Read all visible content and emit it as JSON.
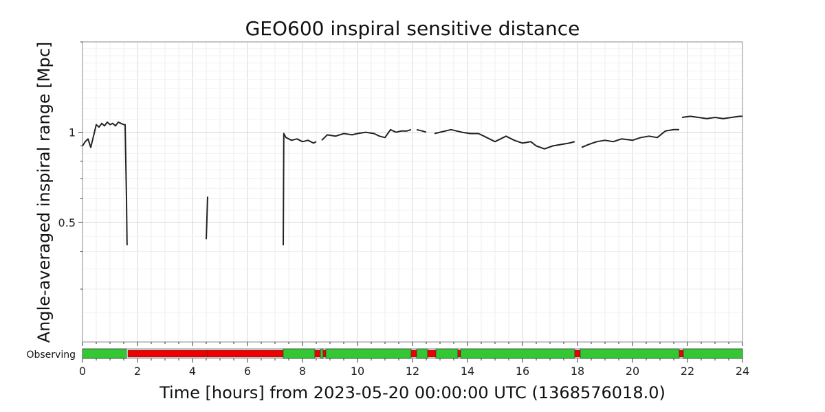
{
  "chart_data": {
    "type": "line",
    "title": "GEO600 inspiral sensitive distance",
    "xlabel": "Time [hours] from 2023-05-20 00:00:00 UTC (1368576018.0)",
    "ylabel": "Angle-averaged inspiral range [Mpc]",
    "x_ticks": [
      0,
      2,
      4,
      6,
      8,
      10,
      12,
      14,
      16,
      18,
      20,
      22,
      24
    ],
    "x_tick_labels": [
      "0",
      "2",
      "4",
      "6",
      "8",
      "10",
      "12",
      "14",
      "16",
      "18",
      "20",
      "22",
      "24"
    ],
    "y_tick_labels": [
      "0.5",
      "1"
    ],
    "y_scale": "log",
    "xlim": [
      0,
      24
    ],
    "ylim": [
      0.2,
      2.0
    ],
    "grid": true,
    "series": [
      {
        "color": "#222222",
        "segments": [
          [
            [
              0.0,
              0.9
            ],
            [
              0.1,
              0.93
            ],
            [
              0.2,
              0.95
            ],
            [
              0.3,
              0.89
            ],
            [
              0.4,
              0.97
            ],
            [
              0.5,
              1.06
            ],
            [
              0.6,
              1.04
            ],
            [
              0.7,
              1.07
            ],
            [
              0.8,
              1.05
            ],
            [
              0.9,
              1.08
            ],
            [
              1.0,
              1.06
            ],
            [
              1.1,
              1.07
            ],
            [
              1.2,
              1.05
            ],
            [
              1.3,
              1.08
            ],
            [
              1.4,
              1.07
            ],
            [
              1.5,
              1.06
            ],
            [
              1.55,
              1.06
            ],
            [
              1.6,
              0.6
            ],
            [
              1.62,
              0.42
            ]
          ],
          [
            [
              4.5,
              0.44
            ],
            [
              4.55,
              0.61
            ]
          ],
          [
            [
              7.3,
              0.42
            ],
            [
              7.32,
              0.99
            ],
            [
              7.4,
              0.96
            ],
            [
              7.6,
              0.94
            ],
            [
              7.8,
              0.95
            ],
            [
              8.0,
              0.93
            ],
            [
              8.2,
              0.94
            ],
            [
              8.4,
              0.92
            ],
            [
              8.5,
              0.93
            ]
          ],
          [
            [
              8.7,
              0.94
            ],
            [
              8.9,
              0.98
            ],
            [
              9.2,
              0.97
            ],
            [
              9.5,
              0.99
            ],
            [
              9.8,
              0.98
            ],
            [
              10.0,
              0.99
            ],
            [
              10.3,
              1.0
            ],
            [
              10.6,
              0.99
            ],
            [
              10.8,
              0.97
            ],
            [
              11.0,
              0.96
            ],
            [
              11.2,
              1.02
            ],
            [
              11.4,
              1.0
            ],
            [
              11.6,
              1.01
            ],
            [
              11.8,
              1.01
            ],
            [
              11.95,
              1.02
            ]
          ],
          [
            [
              12.15,
              1.02
            ],
            [
              12.35,
              1.01
            ],
            [
              12.5,
              1.0
            ]
          ],
          [
            [
              12.8,
              0.99
            ],
            [
              13.0,
              1.0
            ],
            [
              13.2,
              1.01
            ],
            [
              13.4,
              1.02
            ],
            [
              13.6,
              1.01
            ],
            [
              13.8,
              1.0
            ],
            [
              14.1,
              0.99
            ],
            [
              14.4,
              0.99
            ],
            [
              14.6,
              0.97
            ],
            [
              14.8,
              0.95
            ],
            [
              15.0,
              0.93
            ],
            [
              15.2,
              0.95
            ],
            [
              15.4,
              0.97
            ],
            [
              15.7,
              0.94
            ],
            [
              16.0,
              0.92
            ],
            [
              16.3,
              0.93
            ],
            [
              16.5,
              0.9
            ],
            [
              16.8,
              0.88
            ],
            [
              17.1,
              0.9
            ],
            [
              17.4,
              0.91
            ],
            [
              17.7,
              0.92
            ],
            [
              17.9,
              0.93
            ]
          ],
          [
            [
              18.15,
              0.89
            ],
            [
              18.4,
              0.91
            ],
            [
              18.7,
              0.93
            ],
            [
              19.0,
              0.94
            ],
            [
              19.3,
              0.93
            ],
            [
              19.6,
              0.95
            ],
            [
              20.0,
              0.94
            ],
            [
              20.3,
              0.96
            ],
            [
              20.6,
              0.97
            ],
            [
              20.9,
              0.96
            ],
            [
              21.2,
              1.01
            ],
            [
              21.5,
              1.02
            ],
            [
              21.7,
              1.02
            ]
          ],
          [
            [
              21.8,
              1.12
            ],
            [
              22.1,
              1.13
            ],
            [
              22.4,
              1.12
            ],
            [
              22.7,
              1.11
            ],
            [
              23.0,
              1.12
            ],
            [
              23.3,
              1.11
            ],
            [
              23.6,
              1.12
            ],
            [
              23.9,
              1.13
            ],
            [
              24.0,
              1.13
            ]
          ]
        ]
      }
    ],
    "segment_bar": {
      "label": "Observing",
      "on_color": "#33c733",
      "off_color": "#ee0000",
      "intervals": [
        {
          "start": 0.0,
          "end": 1.6,
          "state": "on"
        },
        {
          "start": 1.6,
          "end": 1.65,
          "state": "gap"
        },
        {
          "start": 1.65,
          "end": 4.55,
          "state": "off"
        },
        {
          "start": 4.55,
          "end": 7.3,
          "state": "off"
        },
        {
          "start": 7.3,
          "end": 8.45,
          "state": "on"
        },
        {
          "start": 8.45,
          "end": 8.65,
          "state": "off"
        },
        {
          "start": 8.65,
          "end": 8.75,
          "state": "on"
        },
        {
          "start": 8.75,
          "end": 8.85,
          "state": "off"
        },
        {
          "start": 8.85,
          "end": 11.95,
          "state": "on"
        },
        {
          "start": 11.95,
          "end": 12.15,
          "state": "off"
        },
        {
          "start": 12.15,
          "end": 12.55,
          "state": "on"
        },
        {
          "start": 12.55,
          "end": 12.85,
          "state": "off"
        },
        {
          "start": 12.85,
          "end": 13.65,
          "state": "on"
        },
        {
          "start": 13.65,
          "end": 13.75,
          "state": "off"
        },
        {
          "start": 13.75,
          "end": 17.9,
          "state": "on"
        },
        {
          "start": 17.9,
          "end": 18.1,
          "state": "off"
        },
        {
          "start": 18.1,
          "end": 21.7,
          "state": "on"
        },
        {
          "start": 21.7,
          "end": 21.85,
          "state": "off"
        },
        {
          "start": 21.85,
          "end": 24.0,
          "state": "on"
        }
      ]
    }
  }
}
